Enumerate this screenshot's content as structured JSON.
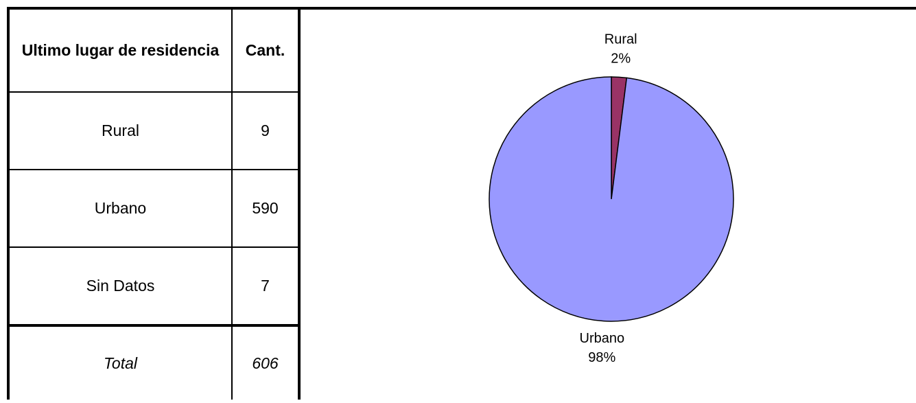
{
  "table": {
    "header": [
      "Ultimo lugar de residencia",
      "Cant."
    ],
    "rows": [
      [
        "Rural",
        9
      ],
      [
        "Urbano",
        590
      ],
      [
        "Sin Datos",
        7
      ]
    ],
    "total": [
      "Total",
      606
    ]
  },
  "chart_data": {
    "type": "pie",
    "categories": [
      "Rural",
      "Urbano"
    ],
    "values": [
      2,
      98
    ],
    "value_labels": [
      "2%",
      "98%"
    ],
    "colors": [
      "#993366",
      "#9999ff"
    ]
  }
}
